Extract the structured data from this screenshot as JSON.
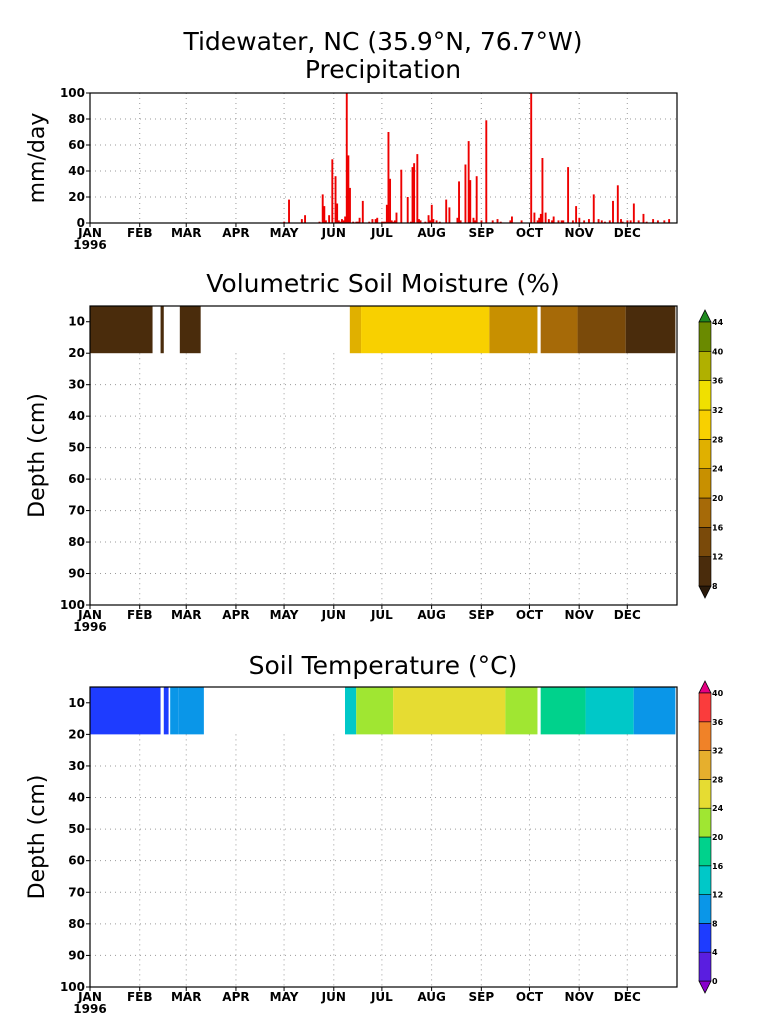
{
  "titles": {
    "station": "Tidewater, NC  (35.9°N, 76.7°W)",
    "precip": "Precipitation",
    "moisture": "Volumetric Soil Moisture (%)",
    "temperature": "Soil Temperature (°C)"
  },
  "chart_data": [
    {
      "type": "bar",
      "title": "Precipitation",
      "ylabel": "mm/day",
      "ylim": [
        0,
        100
      ],
      "yticks": [
        "0",
        "20",
        "40",
        "60",
        "80",
        "100"
      ],
      "months": [
        "JAN",
        "FEB",
        "MAR",
        "APR",
        "MAY",
        "JUN",
        "JUL",
        "AUG",
        "SEP",
        "OCT",
        "NOV",
        "DEC"
      ],
      "year": "1996",
      "bar_color": "#ee0000",
      "grid": true,
      "x_unit": "day of year 1996",
      "series": [
        {
          "x": [
            122,
            125,
            133,
            135,
            144,
            146,
            147,
            148,
            150,
            152,
            154,
            155,
            156,
            157,
            158,
            159,
            160,
            161,
            162,
            163,
            165,
            167,
            168,
            169,
            171,
            175,
            177,
            179,
            180,
            183,
            184,
            185,
            186,
            187,
            188,
            189,
            190,
            191,
            192,
            195,
            199,
            201,
            202,
            203,
            205,
            206,
            207,
            210,
            212,
            213,
            214,
            215,
            217,
            219,
            223,
            225,
            230,
            231,
            232,
            235,
            237,
            238,
            240,
            241,
            242,
            245,
            248,
            252,
            255,
            257,
            263,
            264,
            270,
            276,
            278,
            280,
            281,
            282,
            283,
            285,
            287,
            289,
            290,
            293,
            295,
            296,
            299,
            302,
            304,
            306,
            309,
            312,
            315,
            318,
            320,
            322,
            325,
            327,
            330,
            332,
            333,
            336,
            338,
            340,
            343,
            346,
            348,
            352,
            355,
            359,
            362
          ],
          "values": [
            1,
            18,
            3,
            6,
            1,
            22,
            13,
            2,
            6,
            49,
            36,
            15,
            2,
            1,
            3,
            2,
            5,
            100,
            52,
            27,
            1,
            1,
            1,
            4,
            17,
            1,
            3,
            3,
            4,
            1,
            1,
            1,
            14,
            70,
            34,
            2,
            1,
            2,
            8,
            41,
            20,
            1,
            43,
            46,
            53,
            3,
            2,
            1,
            6,
            2,
            14,
            3,
            2,
            1,
            18,
            12,
            4,
            32,
            2,
            45,
            63,
            33,
            4,
            2,
            36,
            2,
            79,
            2,
            3,
            1,
            2,
            5,
            2,
            100,
            8,
            2,
            4,
            7,
            50,
            8,
            3,
            2,
            5,
            2,
            2,
            2,
            43,
            2,
            13,
            4,
            2,
            3,
            22,
            3,
            2,
            1,
            2,
            17,
            29,
            3,
            1,
            2,
            2,
            15,
            2,
            7,
            1,
            3,
            2,
            2,
            3
          ]
        }
      ]
    },
    {
      "type": "heatmap",
      "title": "Volumetric Soil Moisture (%)",
      "ylabel": "Depth (cm)",
      "ylim": [
        100,
        5
      ],
      "yticks": [
        "10",
        "20",
        "30",
        "40",
        "50",
        "60",
        "70",
        "80",
        "90",
        "100"
      ],
      "months": [
        "JAN",
        "FEB",
        "MAR",
        "APR",
        "MAY",
        "JUN",
        "JUL",
        "AUG",
        "SEP",
        "OCT",
        "NOV",
        "DEC"
      ],
      "year": "1996",
      "depth_range_cm": [
        5,
        20
      ],
      "x_unit": "day of year 1996",
      "colorbar": {
        "labels": [
          "8",
          "12",
          "16",
          "20",
          "24",
          "28",
          "32",
          "36",
          "40",
          "44"
        ],
        "colors": [
          "#2a1a0a",
          "#4a2c0c",
          "#7a4a0a",
          "#a66a08",
          "#c89000",
          "#e0b000",
          "#f8d000",
          "#f0e000",
          "#b0b000",
          "#6a8a00",
          "#208a20"
        ]
      },
      "cells": [
        {
          "x0": 1,
          "x1": 40,
          "color": "#4a2c0c",
          "value": 10
        },
        {
          "x0": 45,
          "x1": 47,
          "color": "#4a2c0c",
          "value": 10
        },
        {
          "x0": 57,
          "x1": 70,
          "color": "#4a2c0c",
          "value": 10
        },
        {
          "x0": 163,
          "x1": 170,
          "color": "#e0b000",
          "value": 26
        },
        {
          "x0": 170,
          "x1": 250,
          "color": "#f8d000",
          "value": 29
        },
        {
          "x0": 250,
          "x1": 280,
          "color": "#c89000",
          "value": 23
        },
        {
          "x0": 282,
          "x1": 305,
          "color": "#a66a08",
          "value": 19
        },
        {
          "x0": 305,
          "x1": 335,
          "color": "#7a4a0a",
          "value": 15
        },
        {
          "x0": 335,
          "x1": 366,
          "color": "#4a2c0c",
          "value": 11
        }
      ]
    },
    {
      "type": "heatmap",
      "title": "Soil Temperature (°C)",
      "ylabel": "Depth (cm)",
      "ylim": [
        100,
        5
      ],
      "yticks": [
        "10",
        "20",
        "30",
        "40",
        "50",
        "60",
        "70",
        "80",
        "90",
        "100"
      ],
      "months": [
        "JAN",
        "FEB",
        "MAR",
        "APR",
        "MAY",
        "JUN",
        "JUL",
        "AUG",
        "SEP",
        "OCT",
        "NOV",
        "DEC"
      ],
      "year": "1996",
      "depth_range_cm": [
        5,
        20
      ],
      "x_unit": "day of year 1996",
      "colorbar": {
        "labels": [
          "0",
          "4",
          "8",
          "12",
          "16",
          "20",
          "24",
          "28",
          "32",
          "36",
          "40"
        ],
        "colors": [
          "#8800cc",
          "#5a1ee0",
          "#1e3cff",
          "#0a96e8",
          "#00c8c8",
          "#00d28c",
          "#a0e632",
          "#e6dc32",
          "#e6af2d",
          "#f08228",
          "#fa3c3c",
          "#e60082"
        ]
      },
      "cells": [
        {
          "x0": 1,
          "x1": 45,
          "color": "#1e3cff",
          "value": 6
        },
        {
          "x0": 47,
          "x1": 50,
          "color": "#1e3cff",
          "value": 6
        },
        {
          "x0": 51,
          "x1": 56,
          "color": "#0a96e8",
          "value": 9
        },
        {
          "x0": 56,
          "x1": 72,
          "color": "#0a96e8",
          "value": 10
        },
        {
          "x0": 160,
          "x1": 167,
          "color": "#00c8c8",
          "value": 18
        },
        {
          "x0": 167,
          "x1": 190,
          "color": "#a0e632",
          "value": 23
        },
        {
          "x0": 190,
          "x1": 260,
          "color": "#e6dc32",
          "value": 26
        },
        {
          "x0": 260,
          "x1": 280,
          "color": "#a0e632",
          "value": 22
        },
        {
          "x0": 282,
          "x1": 310,
          "color": "#00d28c",
          "value": 18
        },
        {
          "x0": 310,
          "x1": 340,
          "color": "#00c8c8",
          "value": 13
        },
        {
          "x0": 340,
          "x1": 366,
          "color": "#0a96e8",
          "value": 10
        }
      ]
    }
  ]
}
